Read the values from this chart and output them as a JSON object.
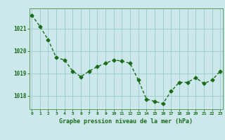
{
  "x": [
    0,
    1,
    2,
    3,
    4,
    5,
    6,
    7,
    8,
    9,
    10,
    11,
    12,
    13,
    14,
    15,
    16,
    17,
    18,
    19,
    20,
    21,
    22,
    23
  ],
  "y": [
    1021.6,
    1021.1,
    1020.5,
    1019.7,
    1019.6,
    1019.1,
    1018.85,
    1019.1,
    1019.3,
    1019.45,
    1019.6,
    1019.55,
    1019.45,
    1018.7,
    1017.85,
    1017.75,
    1017.65,
    1018.2,
    1018.6,
    1018.6,
    1018.8,
    1018.55,
    1018.7,
    1019.1
  ],
  "line_color": "#1a6b1a",
  "marker": "D",
  "marker_size": 2.5,
  "bg_color": "#cce8ea",
  "grid_color": "#99cccc",
  "xlabel": "Graphe pression niveau de la mer (hPa)",
  "xlabel_color": "#1a6b1a",
  "tick_color": "#1a6b1a",
  "yticks": [
    1018,
    1019,
    1020,
    1021
  ],
  "xticks": [
    0,
    1,
    2,
    3,
    4,
    5,
    6,
    7,
    8,
    9,
    10,
    11,
    12,
    13,
    14,
    15,
    16,
    17,
    18,
    19,
    20,
    21,
    22,
    23
  ],
  "ylim": [
    1017.4,
    1021.9
  ],
  "xlim": [
    -0.3,
    23.3
  ],
  "linewidth": 1.0,
  "bottom_bar_color": "#2d6a2d",
  "spine_color": "#5a9a5a"
}
